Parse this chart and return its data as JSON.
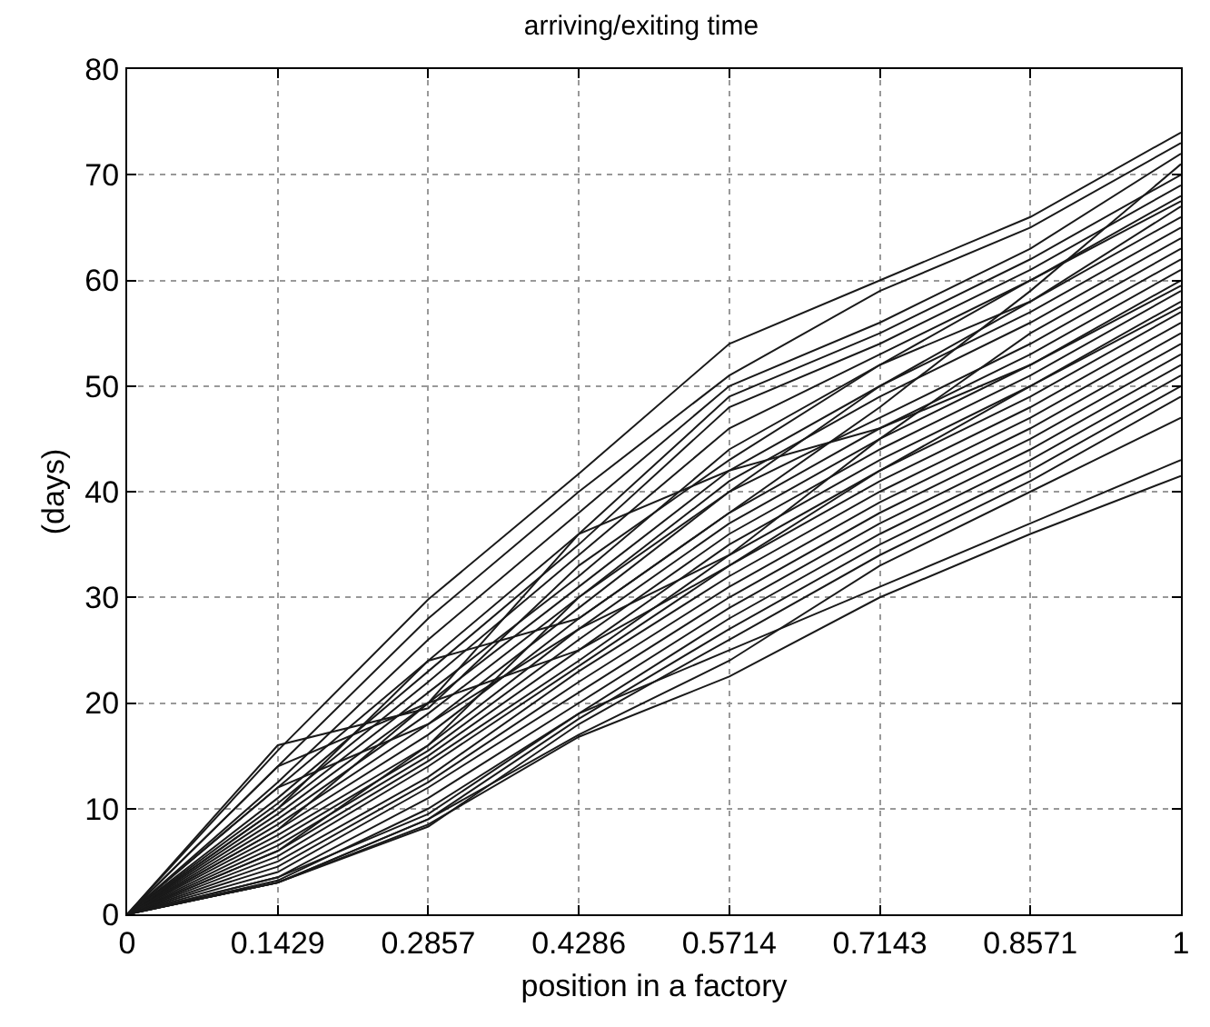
{
  "chart_data": {
    "type": "line",
    "title": "arriving/exiting time",
    "xlabel": "position in a factory",
    "ylabel": "(days)",
    "x": [
      0,
      0.1429,
      0.2857,
      0.4286,
      0.5714,
      0.7143,
      0.8571,
      1
    ],
    "xlim": [
      0,
      1
    ],
    "xticks": [
      0,
      0.1429,
      0.2857,
      0.4286,
      0.5714,
      0.7143,
      0.8571,
      1
    ],
    "ylim": [
      0,
      80
    ],
    "yticks": [
      0,
      10,
      20,
      30,
      40,
      50,
      60,
      70,
      80
    ],
    "grid": true,
    "marker": "none",
    "line_style": "solid",
    "series": [
      {
        "color": "#1a1a1a",
        "values": [
          0,
          16,
          19.5,
          33,
          43,
          52,
          60,
          67.5
        ]
      },
      {
        "color": "#1a1a1a",
        "values": [
          0,
          15.5,
          29.8,
          41.7,
          54,
          60,
          66,
          74
        ]
      },
      {
        "color": "#1a1a1a",
        "values": [
          0,
          14,
          28,
          40,
          51,
          59,
          65,
          73
        ]
      },
      {
        "color": "#1a1a1a",
        "values": [
          0,
          12.5,
          26,
          38,
          50,
          56,
          63,
          72
        ]
      },
      {
        "color": "#1a1a1a",
        "values": [
          0,
          12,
          24,
          36,
          49,
          55,
          62,
          70
        ]
      },
      {
        "color": "#1a1a1a",
        "values": [
          0,
          11,
          23,
          35,
          48,
          54,
          61,
          69
        ]
      },
      {
        "color": "#1a1a1a",
        "values": [
          0,
          10.5,
          22,
          34,
          46,
          53,
          60,
          68
        ]
      },
      {
        "color": "#1a1a1a",
        "values": [
          0,
          10,
          21,
          32,
          44,
          52,
          58,
          67
        ]
      },
      {
        "color": "#1a1a1a",
        "values": [
          0,
          9.5,
          20,
          31,
          42,
          50,
          57,
          65
        ]
      },
      {
        "color": "#1a1a1a",
        "values": [
          0,
          9,
          19,
          30,
          41,
          49,
          56,
          64
        ]
      },
      {
        "color": "#1a1a1a",
        "values": [
          0,
          8.5,
          18,
          29,
          40,
          47,
          54,
          62
        ]
      },
      {
        "color": "#1a1a1a",
        "values": [
          0,
          8,
          17,
          28,
          38,
          46,
          53,
          61
        ]
      },
      {
        "color": "#1a1a1a",
        "values": [
          0,
          7.5,
          16,
          27,
          37,
          45,
          52,
          60
        ]
      },
      {
        "color": "#1a1a1a",
        "values": [
          0,
          7,
          15.5,
          26,
          36,
          44,
          51,
          59
        ]
      },
      {
        "color": "#1a1a1a",
        "values": [
          0,
          6.5,
          15,
          25,
          35,
          43,
          50,
          58
        ]
      },
      {
        "color": "#1a1a1a",
        "values": [
          0,
          6,
          14.5,
          24,
          34,
          42,
          49,
          57
        ]
      },
      {
        "color": "#1a1a1a",
        "values": [
          0,
          5.5,
          14,
          23.5,
          33,
          41,
          48,
          56
        ]
      },
      {
        "color": "#1a1a1a",
        "values": [
          0,
          5,
          13,
          23,
          32,
          40,
          47,
          55
        ]
      },
      {
        "color": "#1a1a1a",
        "values": [
          0,
          4.5,
          12.5,
          22,
          31,
          39,
          46,
          54
        ]
      },
      {
        "color": "#1a1a1a",
        "values": [
          0,
          4,
          12,
          21,
          30,
          38,
          45,
          53
        ]
      },
      {
        "color": "#1a1a1a",
        "values": [
          0,
          3.5,
          11,
          20,
          29,
          37,
          44,
          52
        ]
      },
      {
        "color": "#1a1a1a",
        "values": [
          0,
          3.2,
          10,
          19,
          28,
          36,
          43,
          51
        ]
      },
      {
        "color": "#1a1a1a",
        "values": [
          0,
          3,
          9,
          18.5,
          27,
          35,
          42,
          50
        ]
      },
      {
        "color": "#1a1a1a",
        "values": [
          0,
          3,
          8.3,
          18,
          26,
          34,
          41,
          49
        ]
      },
      {
        "color": "#1a1a1a",
        "values": [
          0,
          3,
          9,
          17,
          24,
          33,
          40,
          47
        ]
      },
      {
        "color": "#1a1a1a",
        "values": [
          0,
          3,
          8.5,
          16.8,
          22.5,
          30,
          36,
          41.5
        ]
      },
      {
        "color": "#1a1a1a",
        "values": [
          0,
          3.5,
          9.5,
          19,
          25,
          31,
          37,
          43
        ]
      },
      {
        "color": "#1a1a1a",
        "values": [
          0,
          12,
          18,
          27,
          34,
          45,
          55,
          63
        ]
      },
      {
        "color": "#1a1a1a",
        "values": [
          0,
          6,
          16,
          30,
          40,
          50,
          58,
          66
        ]
      },
      {
        "color": "#1a1a1a",
        "values": [
          0,
          10,
          24,
          28,
          38,
          48,
          59,
          71
        ]
      },
      {
        "color": "#1a1a1a",
        "values": [
          0,
          8,
          20,
          36,
          42,
          46,
          52,
          59.5
        ]
      },
      {
        "color": "#1a1a1a",
        "values": [
          0,
          14,
          20,
          25,
          33,
          42,
          50,
          57.5
        ]
      }
    ]
  }
}
